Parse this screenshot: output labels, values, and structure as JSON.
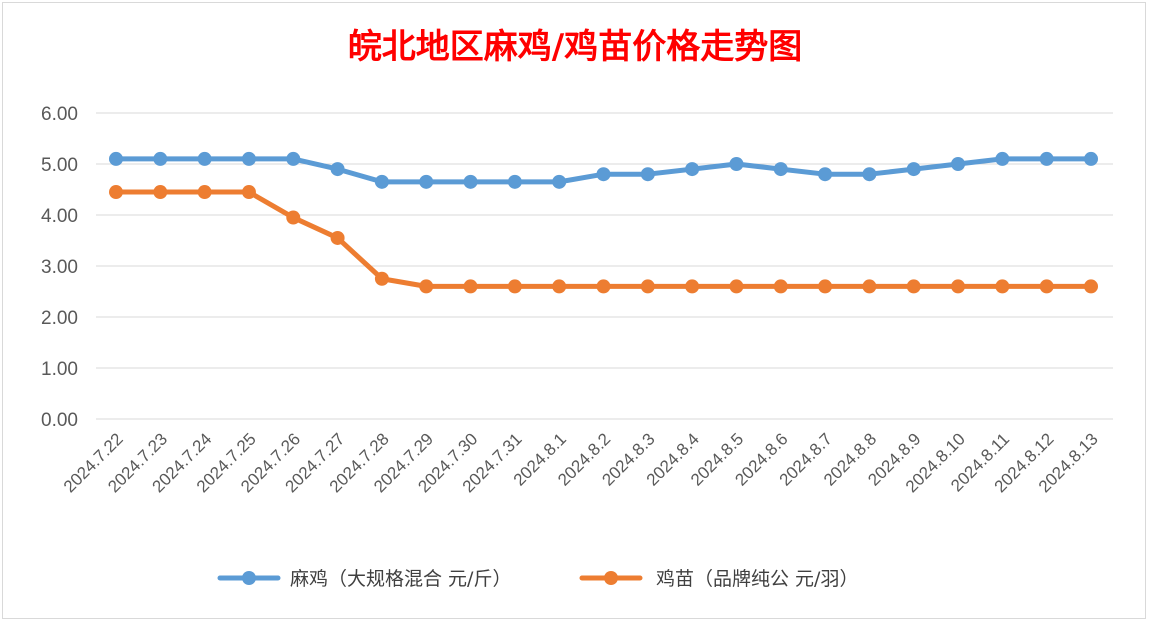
{
  "chart_data": {
    "type": "line",
    "title": "皖北地区麻鸡/鸡苗价格走势图",
    "categories": [
      "2024.7.22",
      "2024.7.23",
      "2024.7.24",
      "2024.7.25",
      "2024.7.26",
      "2024.7.27",
      "2024.7.28",
      "2024.7.29",
      "2024.7.30",
      "2024.7.31",
      "2024.8.1",
      "2024.8.2",
      "2024.8.3",
      "2024.8.4",
      "2024.8.5",
      "2024.8.6",
      "2024.8.7",
      "2024.8.8",
      "2024.8.9",
      "2024.8.10",
      "2024.8.11",
      "2024.8.12",
      "2024.8.13"
    ],
    "series": [
      {
        "name": "麻鸡（大规格混合 元/斤）",
        "color": "#5b9bd5",
        "values": [
          5.1,
          5.1,
          5.1,
          5.1,
          5.1,
          4.9,
          4.65,
          4.65,
          4.65,
          4.65,
          4.65,
          4.8,
          4.8,
          4.9,
          5.0,
          4.9,
          4.8,
          4.8,
          4.9,
          5.0,
          5.1,
          5.1,
          5.1
        ]
      },
      {
        "name": "鸡苗（品牌纯公 元/羽）",
        "color": "#ed7d31",
        "values": [
          4.45,
          4.45,
          4.45,
          4.45,
          3.95,
          3.55,
          2.75,
          2.6,
          2.6,
          2.6,
          2.6,
          2.6,
          2.6,
          2.6,
          2.6,
          2.6,
          2.6,
          2.6,
          2.6,
          2.6,
          2.6,
          2.6,
          2.6
        ]
      }
    ],
    "yticks": [
      "0.00",
      "1.00",
      "2.00",
      "3.00",
      "4.00",
      "5.00",
      "6.00"
    ],
    "ylim": [
      0,
      6
    ],
    "grid": true,
    "legend_position": "bottom"
  }
}
